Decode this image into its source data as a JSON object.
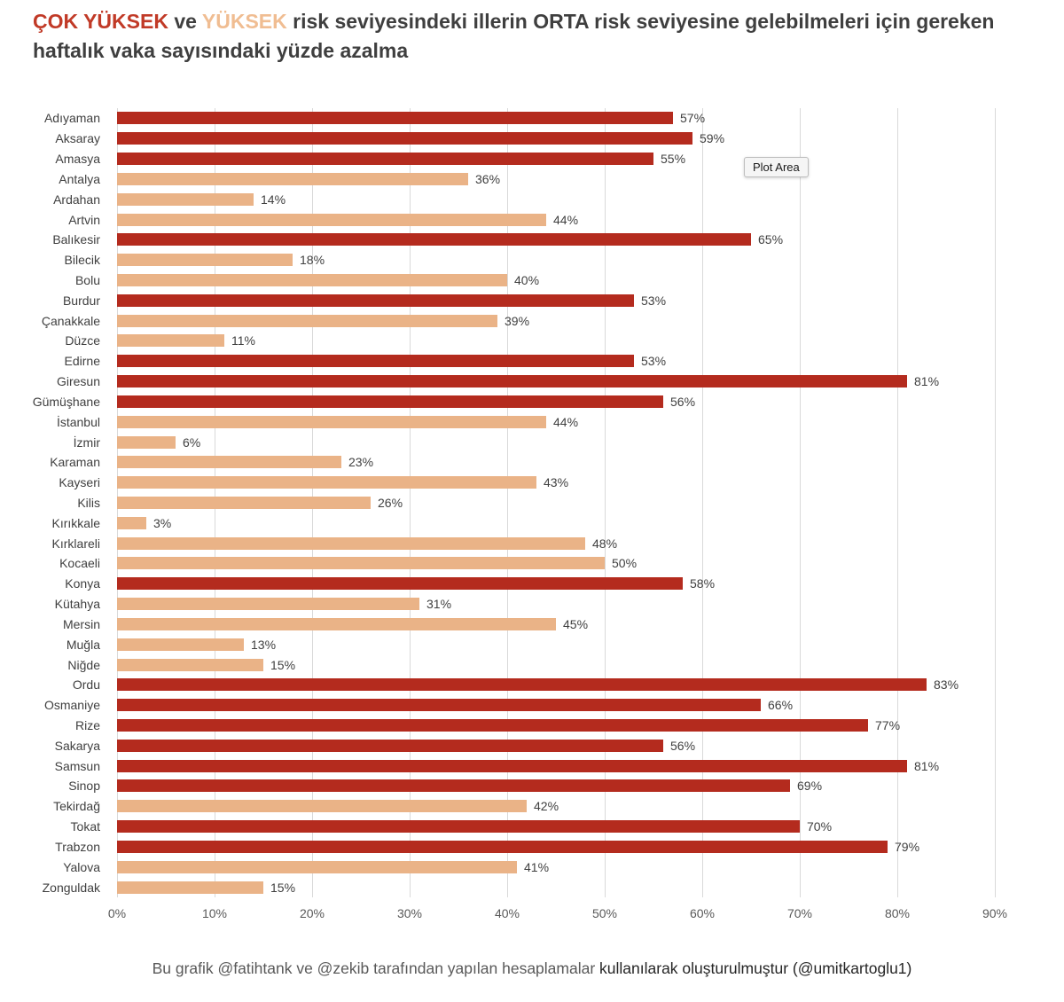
{
  "title": {
    "segments": [
      {
        "text": "ÇOK YÜKSEK",
        "color": "#c13a27"
      },
      {
        "text": " ve ",
        "color": "#3f3f3f"
      },
      {
        "text": "YÜKSEK",
        "color": "#f0bd92"
      },
      {
        "text": " risk seviyesindeki illerin ORTA risk seviyesine gelebilmeleri için gereken haftalık vaka sayısındaki yüzde azalma",
        "color": "#3f3f3f"
      }
    ]
  },
  "plot_area_label": "Plot Area",
  "footer": {
    "text_gray": "Bu grafik @fatihtank ve @zekib tarafından yapılan hesaplamalar ",
    "text_dark": "kullanılarak oluşturulmuştur (@umitkartoglu1)"
  },
  "chart_data": {
    "type": "bar",
    "orientation": "horizontal",
    "title": "ÇOK YÜKSEK ve YÜKSEK risk seviyesindeki illerin ORTA risk seviyesine gelebilmeleri için gereken haftalık vaka sayısındaki yüzde azalma",
    "categories": [
      "Adıyaman",
      "Aksaray",
      "Amasya",
      "Antalya",
      "Ardahan",
      "Artvin",
      "Balıkesir",
      "Bilecik",
      "Bolu",
      "Burdur",
      "Çanakkale",
      "Düzce",
      "Edirne",
      "Giresun",
      "Gümüşhane",
      "İstanbul",
      "İzmir",
      "Karaman",
      "Kayseri",
      "Kilis",
      "Kırıkkale",
      "Kırklareli",
      "Kocaeli",
      "Konya",
      "Kütahya",
      "Mersin",
      "Muğla",
      "Niğde",
      "Ordu",
      "Osmaniye",
      "Rize",
      "Sakarya",
      "Samsun",
      "Sinop",
      "Tekirdağ",
      "Tokat",
      "Trabzon",
      "Yalova",
      "Zonguldak"
    ],
    "values": [
      57,
      59,
      55,
      36,
      14,
      44,
      65,
      18,
      40,
      53,
      39,
      11,
      53,
      81,
      56,
      44,
      6,
      23,
      43,
      26,
      3,
      48,
      50,
      58,
      31,
      45,
      13,
      15,
      83,
      66,
      77,
      56,
      81,
      69,
      42,
      70,
      79,
      41,
      15
    ],
    "levels": [
      "very_high",
      "very_high",
      "very_high",
      "high",
      "high",
      "high",
      "very_high",
      "high",
      "high",
      "very_high",
      "high",
      "high",
      "very_high",
      "very_high",
      "very_high",
      "high",
      "high",
      "high",
      "high",
      "high",
      "high",
      "high",
      "high",
      "very_high",
      "high",
      "high",
      "high",
      "high",
      "very_high",
      "very_high",
      "very_high",
      "very_high",
      "very_high",
      "very_high",
      "high",
      "very_high",
      "very_high",
      "high",
      "high"
    ],
    "level_labels": {
      "very_high": "ÇOK YÜKSEK",
      "high": "YÜKSEK"
    },
    "colors": {
      "very_high": "#b42b1e",
      "high": "#eab387"
    },
    "data_label_suffix": "%",
    "x_ticks": [
      "0%",
      "10%",
      "20%",
      "30%",
      "40%",
      "50%",
      "60%",
      "70%",
      "80%",
      "90%"
    ],
    "xlim": [
      0,
      90
    ],
    "xlabel": "",
    "ylabel": "",
    "gridlines": true,
    "legend_position": "none"
  }
}
